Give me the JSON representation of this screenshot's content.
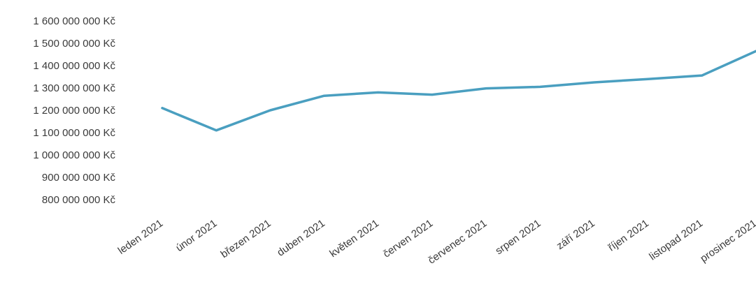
{
  "chart_data": {
    "type": "line",
    "title": "",
    "xlabel": "",
    "ylabel": "",
    "ylim": [
      800000000,
      1600000000
    ],
    "grid": false,
    "legend": "none",
    "categories": [
      "leden 2021",
      "únor 2021",
      "březen 2021",
      "duben 2021",
      "květen 2021",
      "červen 2021",
      "červenec 2021",
      "srpen 2021",
      "září 2021",
      "říjen 2021",
      "listopad 2021",
      "prosinec 2021"
    ],
    "series": [
      {
        "color": "#4a9fc0",
        "values": [
          1210000000,
          1110000000,
          1200000000,
          1265000000,
          1280000000,
          1270000000,
          1298000000,
          1305000000,
          1325000000,
          1340000000,
          1356000000,
          1465000000
        ]
      }
    ],
    "yticks": [
      {
        "value": 800000000,
        "label": "800 000 000 Kč"
      },
      {
        "value": 900000000,
        "label": "900 000 000 Kč"
      },
      {
        "value": 1000000000,
        "label": "1 000 000 000 Kč"
      },
      {
        "value": 1100000000,
        "label": "1 100 000 000 Kč"
      },
      {
        "value": 1200000000,
        "label": "1 200 000 000 Kč"
      },
      {
        "value": 1300000000,
        "label": "1 300 000 000 Kč"
      },
      {
        "value": 1400000000,
        "label": "1 400 000 000 Kč"
      },
      {
        "value": 1500000000,
        "label": "1 500 000 000 Kč"
      },
      {
        "value": 1600000000,
        "label": "1 600 000 000 Kč"
      }
    ]
  }
}
